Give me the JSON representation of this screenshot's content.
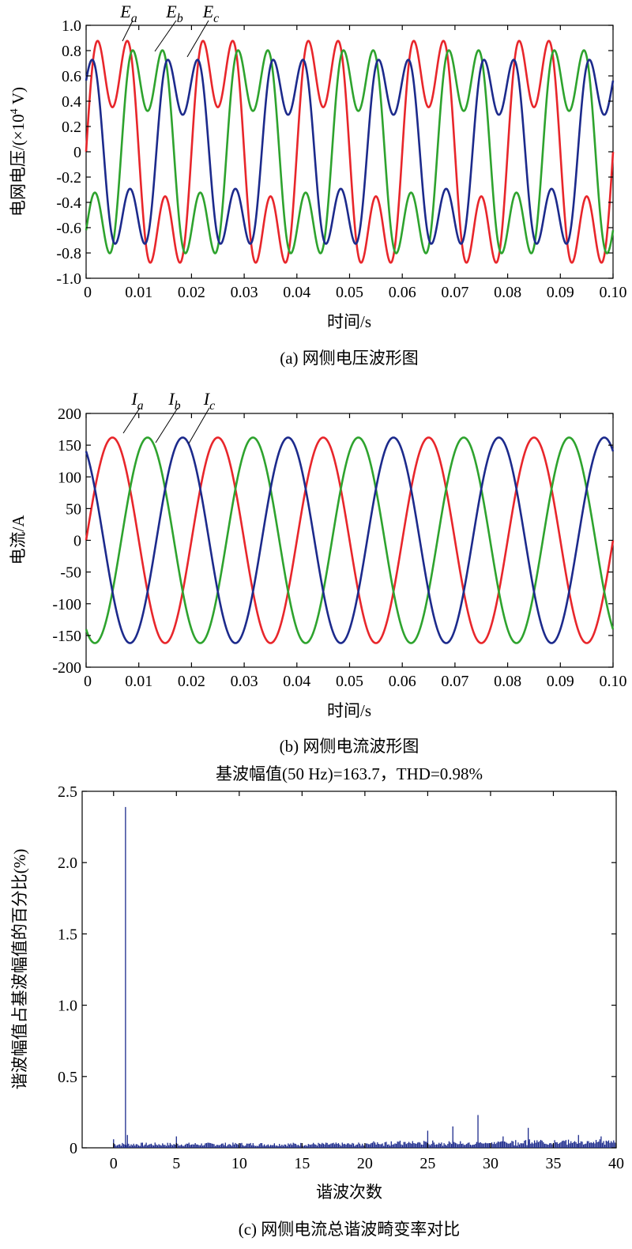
{
  "chart_data": [
    {
      "id": "a",
      "type": "line",
      "caption": "(a) 网侧电压波形图",
      "xlabel": "时间/s",
      "ylabel": "电网电压/(×10",
      "ylabel_sup": "4",
      "ylabel_tail": " V)",
      "xlim": [
        0,
        0.1
      ],
      "ylim": [
        -1.0,
        1.0
      ],
      "xticks": [
        "0",
        "0.01",
        "0.02",
        "0.03",
        "0.04",
        "0.05",
        "0.06",
        "0.07",
        "0.08",
        "0.09",
        "0.10"
      ],
      "yticks": [
        "1.0",
        "0.8",
        "0.6",
        "0.4",
        "0.2",
        "0",
        "-0.2",
        "-0.4",
        "-0.6",
        "-0.8",
        "-1.0"
      ],
      "grid": false,
      "frequency_hz": 50,
      "series": [
        {
          "name": "E",
          "sub": "a",
          "color": "#e8262b",
          "amplitude": 0.94,
          "phase_deg": 0
        },
        {
          "name": "E",
          "sub": "b",
          "color": "#2ea32e",
          "amplitude": 0.86,
          "phase_deg": -120
        },
        {
          "name": "E",
          "sub": "c",
          "color": "#1c2a8c",
          "amplitude": 0.78,
          "phase_deg": 120
        }
      ]
    },
    {
      "id": "b",
      "type": "line",
      "caption": "(b) 网侧电流波形图",
      "xlabel": "时间/s",
      "ylabel": "电流/A",
      "xlim": [
        0,
        0.1
      ],
      "ylim": [
        -200,
        200
      ],
      "xticks": [
        "0",
        "0.01",
        "0.02",
        "0.03",
        "0.04",
        "0.05",
        "0.06",
        "0.07",
        "0.08",
        "0.09",
        "0.10"
      ],
      "yticks": [
        "200",
        "150",
        "100",
        "50",
        "0",
        "-50",
        "-100",
        "-150",
        "-200"
      ],
      "grid": false,
      "frequency_hz": 50,
      "series": [
        {
          "name": "I",
          "sub": "a",
          "color": "#e8262b",
          "amplitude": 162,
          "phase_deg": 0
        },
        {
          "name": "I",
          "sub": "b",
          "color": "#2ea32e",
          "amplitude": 162,
          "phase_deg": -120
        },
        {
          "name": "I",
          "sub": "c",
          "color": "#1c2a8c",
          "amplitude": 162,
          "phase_deg": 120
        }
      ]
    },
    {
      "id": "c",
      "type": "bar",
      "title": "基波幅值(50 Hz)=163.7，THD=0.98%",
      "caption": "(c) 网侧电流总谐波畸变率对比",
      "xlabel": "谐波次数",
      "ylabel": "谐波幅值占基波幅值的百分比(%)",
      "xlim": [
        -2.5,
        40
      ],
      "ylim": [
        0,
        2.5
      ],
      "xticks": [
        "0",
        "5",
        "10",
        "15",
        "20",
        "25",
        "30",
        "35",
        "40"
      ],
      "yticks": [
        "2.5",
        "2.0",
        "1.5",
        "1.0",
        "0.5",
        "0"
      ],
      "color": "#1c2a8c",
      "grid": false,
      "fundamental_value": 2.39,
      "fundamental_order": 1,
      "notable_peaks": [
        {
          "order": 0.0,
          "value": 0.06
        },
        {
          "order": 1.1,
          "value": 0.09
        },
        {
          "order": 5.0,
          "value": 0.08
        },
        {
          "order": 25.0,
          "value": 0.12
        },
        {
          "order": 27.0,
          "value": 0.15
        },
        {
          "order": 29.0,
          "value": 0.23
        },
        {
          "order": 31.0,
          "value": 0.08
        },
        {
          "order": 33.0,
          "value": 0.14
        },
        {
          "order": 37.0,
          "value": 0.09
        },
        {
          "order": 38.8,
          "value": 0.08
        }
      ]
    }
  ]
}
